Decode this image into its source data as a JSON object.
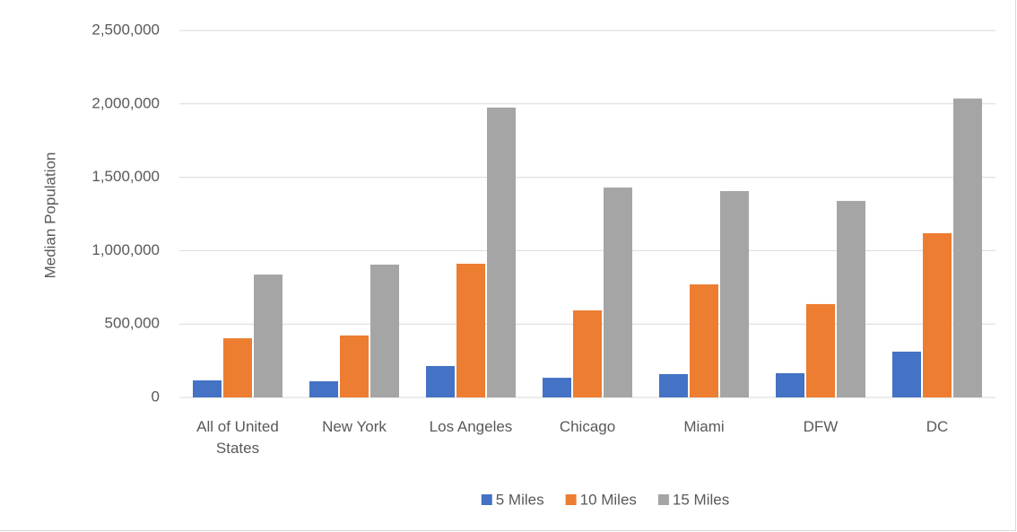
{
  "chart_data": {
    "type": "bar",
    "y_label": "Median Population",
    "categories": [
      "All of United States",
      "New York",
      "Los Angeles",
      "Chicago",
      "Miami",
      "DFW",
      "DC"
    ],
    "series": [
      {
        "name": "5 Miles",
        "color": "#4472c4",
        "values": [
          116000,
          110000,
          214000,
          134000,
          159000,
          165000,
          312000
        ]
      },
      {
        "name": "10 Miles",
        "color": "#ed7d31",
        "values": [
          403000,
          422000,
          911000,
          593000,
          770000,
          636000,
          1119000
        ]
      },
      {
        "name": "15 Miles",
        "color": "#a5a5a5",
        "values": [
          837000,
          905000,
          1975000,
          1430000,
          1406000,
          1339000,
          2037000
        ]
      }
    ],
    "ylim": [
      0,
      2500000
    ],
    "yticks": [
      0,
      {
        "value": 500000,
        "label": "500,000"
      },
      {
        "value": 1000000,
        "label": "1,000,000"
      },
      {
        "value": 1500000,
        "label": "1,500,000"
      },
      {
        "value": 2000000,
        "label": "2,000,000"
      },
      {
        "value": 2500000,
        "label": "2,500,000"
      }
    ],
    "grid": true,
    "legend": "bottom"
  }
}
